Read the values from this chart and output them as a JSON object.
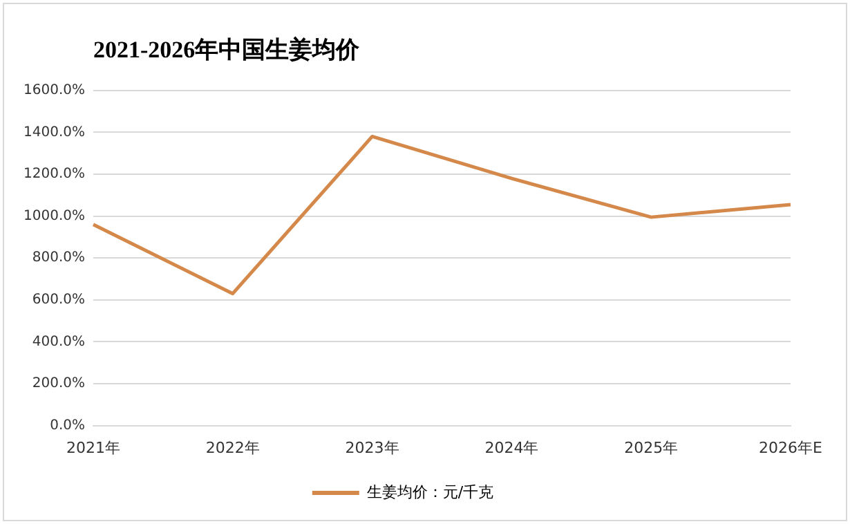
{
  "chart_data": {
    "type": "line",
    "title": "2021-2026年中国生姜均价",
    "categories": [
      "2021年",
      "2022年",
      "2023年",
      "2024年",
      "2025年",
      "2026年E"
    ],
    "series": [
      {
        "name": "生姜均价：元/千克",
        "color": "#d4894b",
        "values": [
          960,
          630,
          1380,
          1180,
          995,
          1055
        ]
      }
    ],
    "ylim": [
      0,
      1600
    ],
    "yticks": [
      {
        "value": 0,
        "label": "0.0%"
      },
      {
        "value": 200,
        "label": "200.0%"
      },
      {
        "value": 400,
        "label": "400.0%"
      },
      {
        "value": 600,
        "label": "600.0%"
      },
      {
        "value": 800,
        "label": "800.0%"
      },
      {
        "value": 1000,
        "label": "1000.0%"
      },
      {
        "value": 1200,
        "label": "1200.0%"
      },
      {
        "value": 1400,
        "label": "1400.0%"
      },
      {
        "value": 1600,
        "label": "1600.0%"
      }
    ],
    "grid": "y",
    "legend": "bottom",
    "marker": "none",
    "line_style": "solid"
  }
}
